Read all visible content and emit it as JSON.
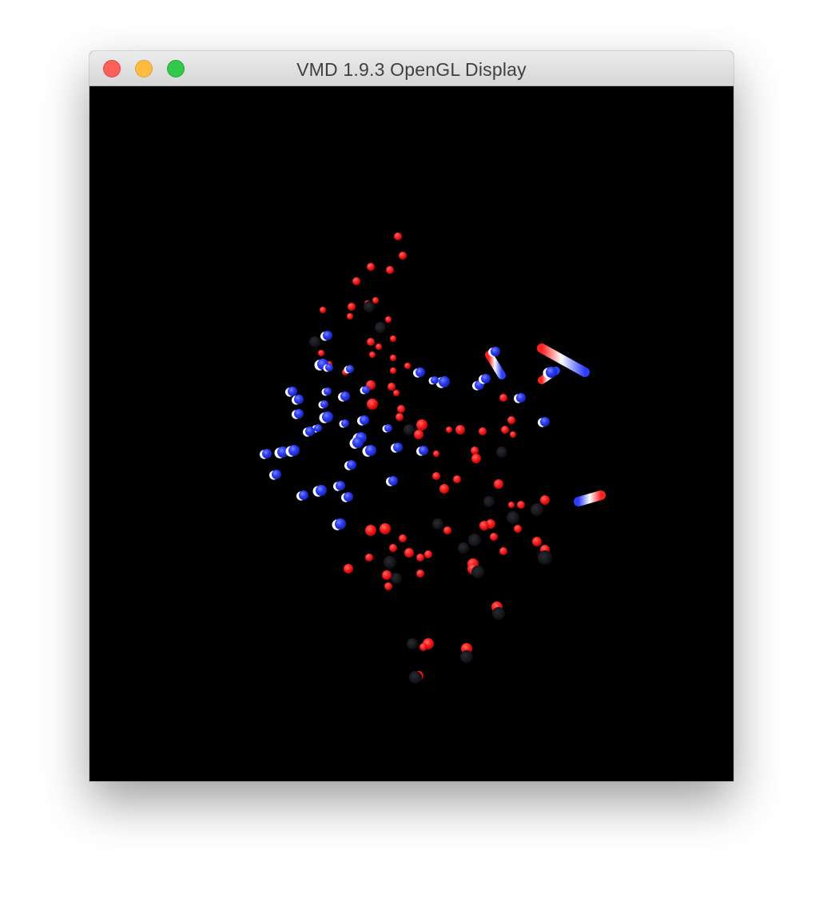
{
  "window": {
    "title": "VMD 1.9.3 OpenGL Display",
    "controls": {
      "close": "close-icon",
      "minimize": "minimize-icon",
      "zoom": "zoom-icon"
    }
  },
  "display": {
    "background": "#000000",
    "atom_colors": {
      "red": "#ff2020",
      "blue": "#2d3dff",
      "white": "#ffffff"
    }
  }
}
